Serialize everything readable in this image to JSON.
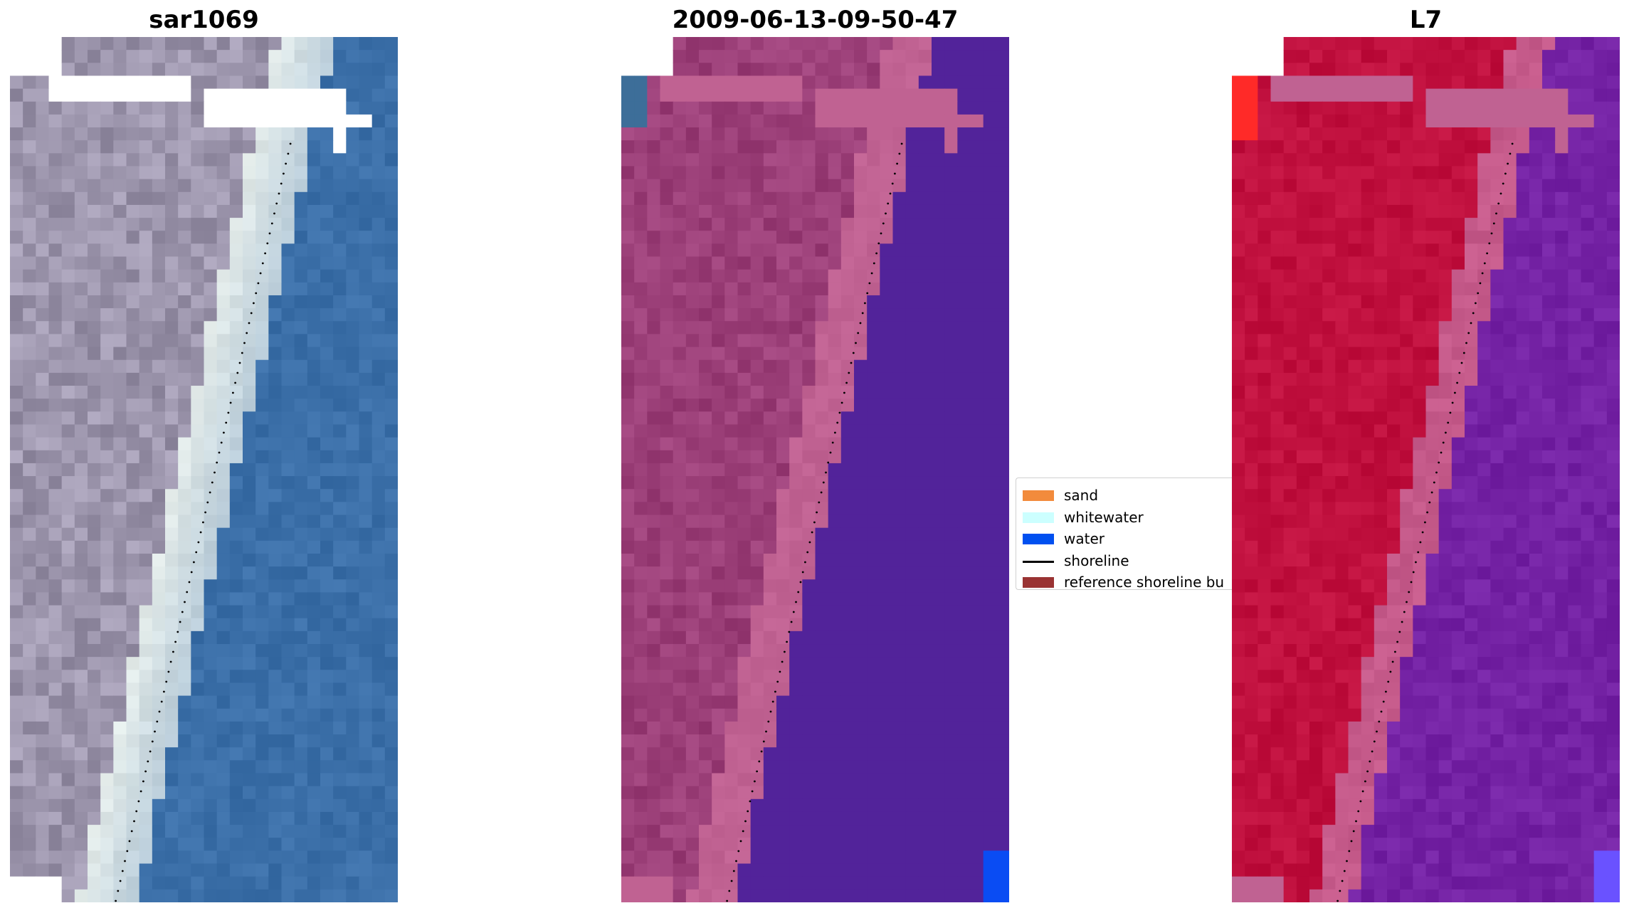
{
  "titles": {
    "left": "sar1069",
    "middle": "2009-06-13-09-50-47",
    "right": "L7"
  },
  "legend": {
    "items": [
      {
        "label": "sand",
        "kind": "patch",
        "color": "#f28b3c"
      },
      {
        "label": "whitewater",
        "kind": "patch",
        "color": "#ccffff"
      },
      {
        "label": "water",
        "kind": "patch",
        "color": "#0050f0"
      },
      {
        "label": "shoreline",
        "kind": "line",
        "color": "#000000"
      },
      {
        "label": "reference shoreline bu",
        "kind": "patch",
        "color": "#9a3333"
      }
    ]
  },
  "colors": {
    "rgb_land": "#9c95ac",
    "rgb_whitewater": "#e4ecea",
    "rgb_water": "#3b6fa8",
    "class_land": "#9b3f78",
    "class_sand": "#c06292",
    "class_water": "#52239a",
    "class_water_pixel": "#0a4cf3",
    "index_land": "#c0103e",
    "index_band": "#c55a8a",
    "index_water": "#7422a4",
    "index_hot": "#ff2a28",
    "index_water_edge": "#6a52ff",
    "nodata": "#ffffff",
    "shoreline_dots": "#000000"
  }
}
